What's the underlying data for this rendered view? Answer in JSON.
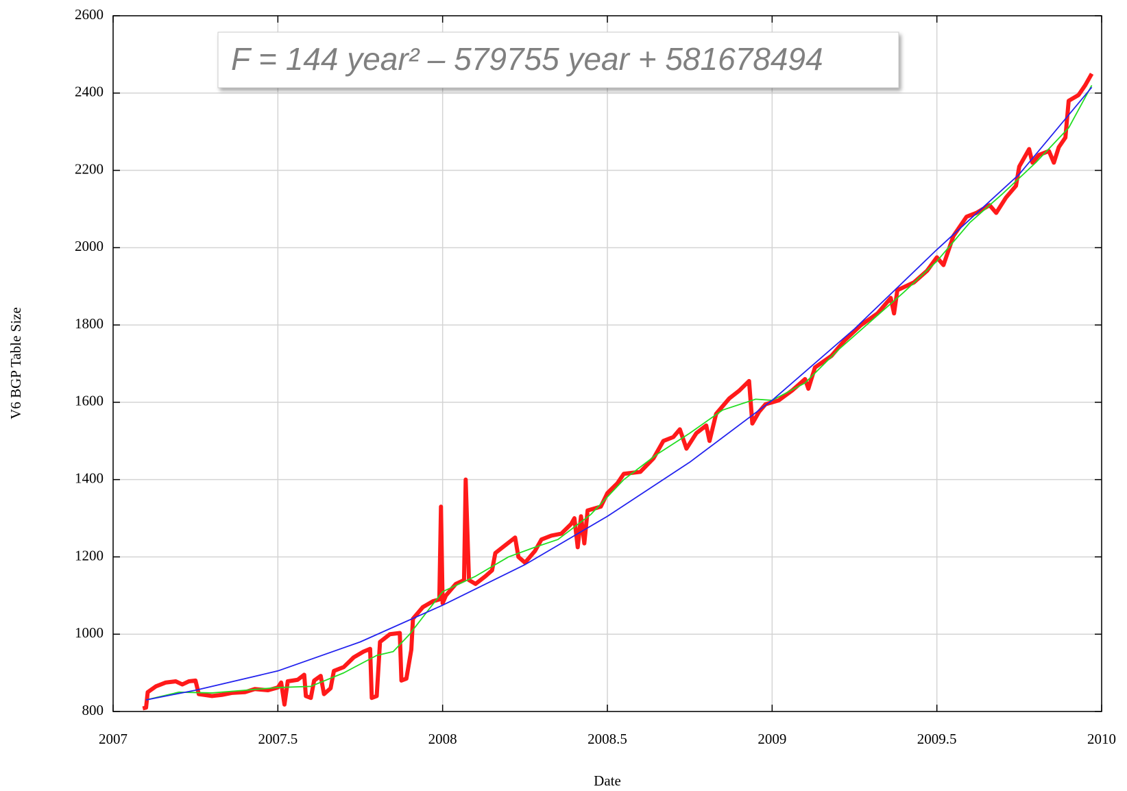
{
  "chart_data": {
    "type": "line",
    "xlabel": "Date",
    "ylabel": "V6 BGP Table Size",
    "annotation": "F = 144 year² – 579755 year + 581678494",
    "xlim": [
      2007,
      2010
    ],
    "xticks": [
      2007,
      2007.5,
      2008,
      2008.5,
      2009,
      2009.5,
      2010
    ],
    "ylim": [
      800,
      2600
    ],
    "yticks": [
      800,
      1000,
      1200,
      1400,
      1600,
      1800,
      2000,
      2200,
      2400,
      2600
    ],
    "grid": true,
    "series": [
      {
        "color": "#ff1a1a",
        "x": [
          2007.09,
          2007.1,
          2007.105,
          2007.13,
          2007.16,
          2007.19,
          2007.21,
          2007.23,
          2007.25,
          2007.26,
          2007.3,
          2007.33,
          2007.36,
          2007.4,
          2007.43,
          2007.47,
          2007.5,
          2007.51,
          2007.52,
          2007.53,
          2007.56,
          2007.58,
          2007.585,
          2007.6,
          2007.61,
          2007.63,
          2007.64,
          2007.66,
          2007.67,
          2007.7,
          2007.73,
          2007.76,
          2007.78,
          2007.785,
          2007.8,
          2007.81,
          2007.84,
          2007.87,
          2007.875,
          2007.89,
          2007.905,
          2007.91,
          2007.94,
          2007.97,
          2007.99,
          2007.995,
          2008.0,
          2008.01,
          2008.04,
          2008.065,
          2008.07,
          2008.08,
          2008.1,
          2008.13,
          2008.15,
          2008.16,
          2008.19,
          2008.22,
          2008.23,
          2008.25,
          2008.28,
          2008.3,
          2008.33,
          2008.36,
          2008.39,
          2008.4,
          2008.41,
          2008.42,
          2008.43,
          2008.44,
          2008.48,
          2008.5,
          2008.53,
          2008.55,
          2008.6,
          2008.64,
          2008.67,
          2008.7,
          2008.72,
          2008.74,
          2008.77,
          2008.8,
          2008.81,
          2008.83,
          2008.87,
          2008.9,
          2008.93,
          2008.94,
          2008.96,
          2008.98,
          2009.02,
          2009.06,
          2009.1,
          2009.11,
          2009.13,
          2009.18,
          2009.22,
          2009.27,
          2009.32,
          2009.36,
          2009.37,
          2009.38,
          2009.43,
          2009.47,
          2009.5,
          2009.52,
          2009.55,
          2009.59,
          2009.62,
          2009.66,
          2009.68,
          2009.71,
          2009.74,
          2009.75,
          2009.78,
          2009.79,
          2009.81,
          2009.84,
          2009.855,
          2009.87,
          2009.89,
          2009.9,
          2009.93,
          2009.95,
          2009.97
        ],
        "values": [
          808,
          810,
          850,
          865,
          875,
          878,
          870,
          878,
          880,
          845,
          840,
          843,
          848,
          850,
          858,
          855,
          862,
          875,
          818,
          878,
          882,
          895,
          840,
          835,
          880,
          892,
          845,
          860,
          905,
          915,
          940,
          955,
          962,
          835,
          840,
          980,
          1000,
          1003,
          880,
          885,
          960,
          1040,
          1070,
          1085,
          1090,
          1330,
          1080,
          1100,
          1130,
          1140,
          1400,
          1140,
          1130,
          1150,
          1165,
          1210,
          1230,
          1250,
          1200,
          1185,
          1215,
          1245,
          1255,
          1260,
          1285,
          1300,
          1225,
          1305,
          1235,
          1320,
          1330,
          1365,
          1390,
          1415,
          1420,
          1455,
          1500,
          1510,
          1530,
          1480,
          1520,
          1540,
          1500,
          1570,
          1610,
          1630,
          1655,
          1545,
          1575,
          1595,
          1605,
          1630,
          1660,
          1635,
          1690,
          1720,
          1760,
          1800,
          1830,
          1870,
          1830,
          1890,
          1910,
          1940,
          1975,
          1955,
          2030,
          2080,
          2090,
          2110,
          2090,
          2130,
          2160,
          2210,
          2255,
          2220,
          2240,
          2250,
          2220,
          2260,
          2285,
          2380,
          2395,
          2420,
          2450
        ]
      },
      {
        "color": "#22dd22",
        "x": [
          2007.1,
          2007.2,
          2007.3,
          2007.4,
          2007.5,
          2007.6,
          2007.7,
          2007.8,
          2007.85,
          2007.9,
          2008.0,
          2008.1,
          2008.2,
          2008.28,
          2008.35,
          2008.45,
          2008.55,
          2008.65,
          2008.75,
          2008.85,
          2008.95,
          2009.0,
          2009.1,
          2009.2,
          2009.3,
          2009.4,
          2009.5,
          2009.6,
          2009.7,
          2009.8,
          2009.9,
          2009.97
        ],
        "values": [
          830,
          850,
          848,
          855,
          862,
          865,
          900,
          945,
          955,
          1000,
          1110,
          1150,
          1200,
          1225,
          1245,
          1310,
          1400,
          1465,
          1520,
          1580,
          1608,
          1605,
          1650,
          1735,
          1810,
          1885,
          1965,
          2065,
          2140,
          2220,
          2310,
          2420
        ]
      },
      {
        "color": "#2222ee",
        "x": [
          2007.1,
          2007.25,
          2007.5,
          2007.75,
          2008.0,
          2008.25,
          2008.5,
          2008.75,
          2009.0,
          2009.25,
          2009.5,
          2009.75,
          2009.97
        ],
        "values": [
          830,
          855,
          905,
          980,
          1075,
          1180,
          1305,
          1445,
          1605,
          1790,
          1995,
          2190,
          2415
        ]
      }
    ]
  }
}
